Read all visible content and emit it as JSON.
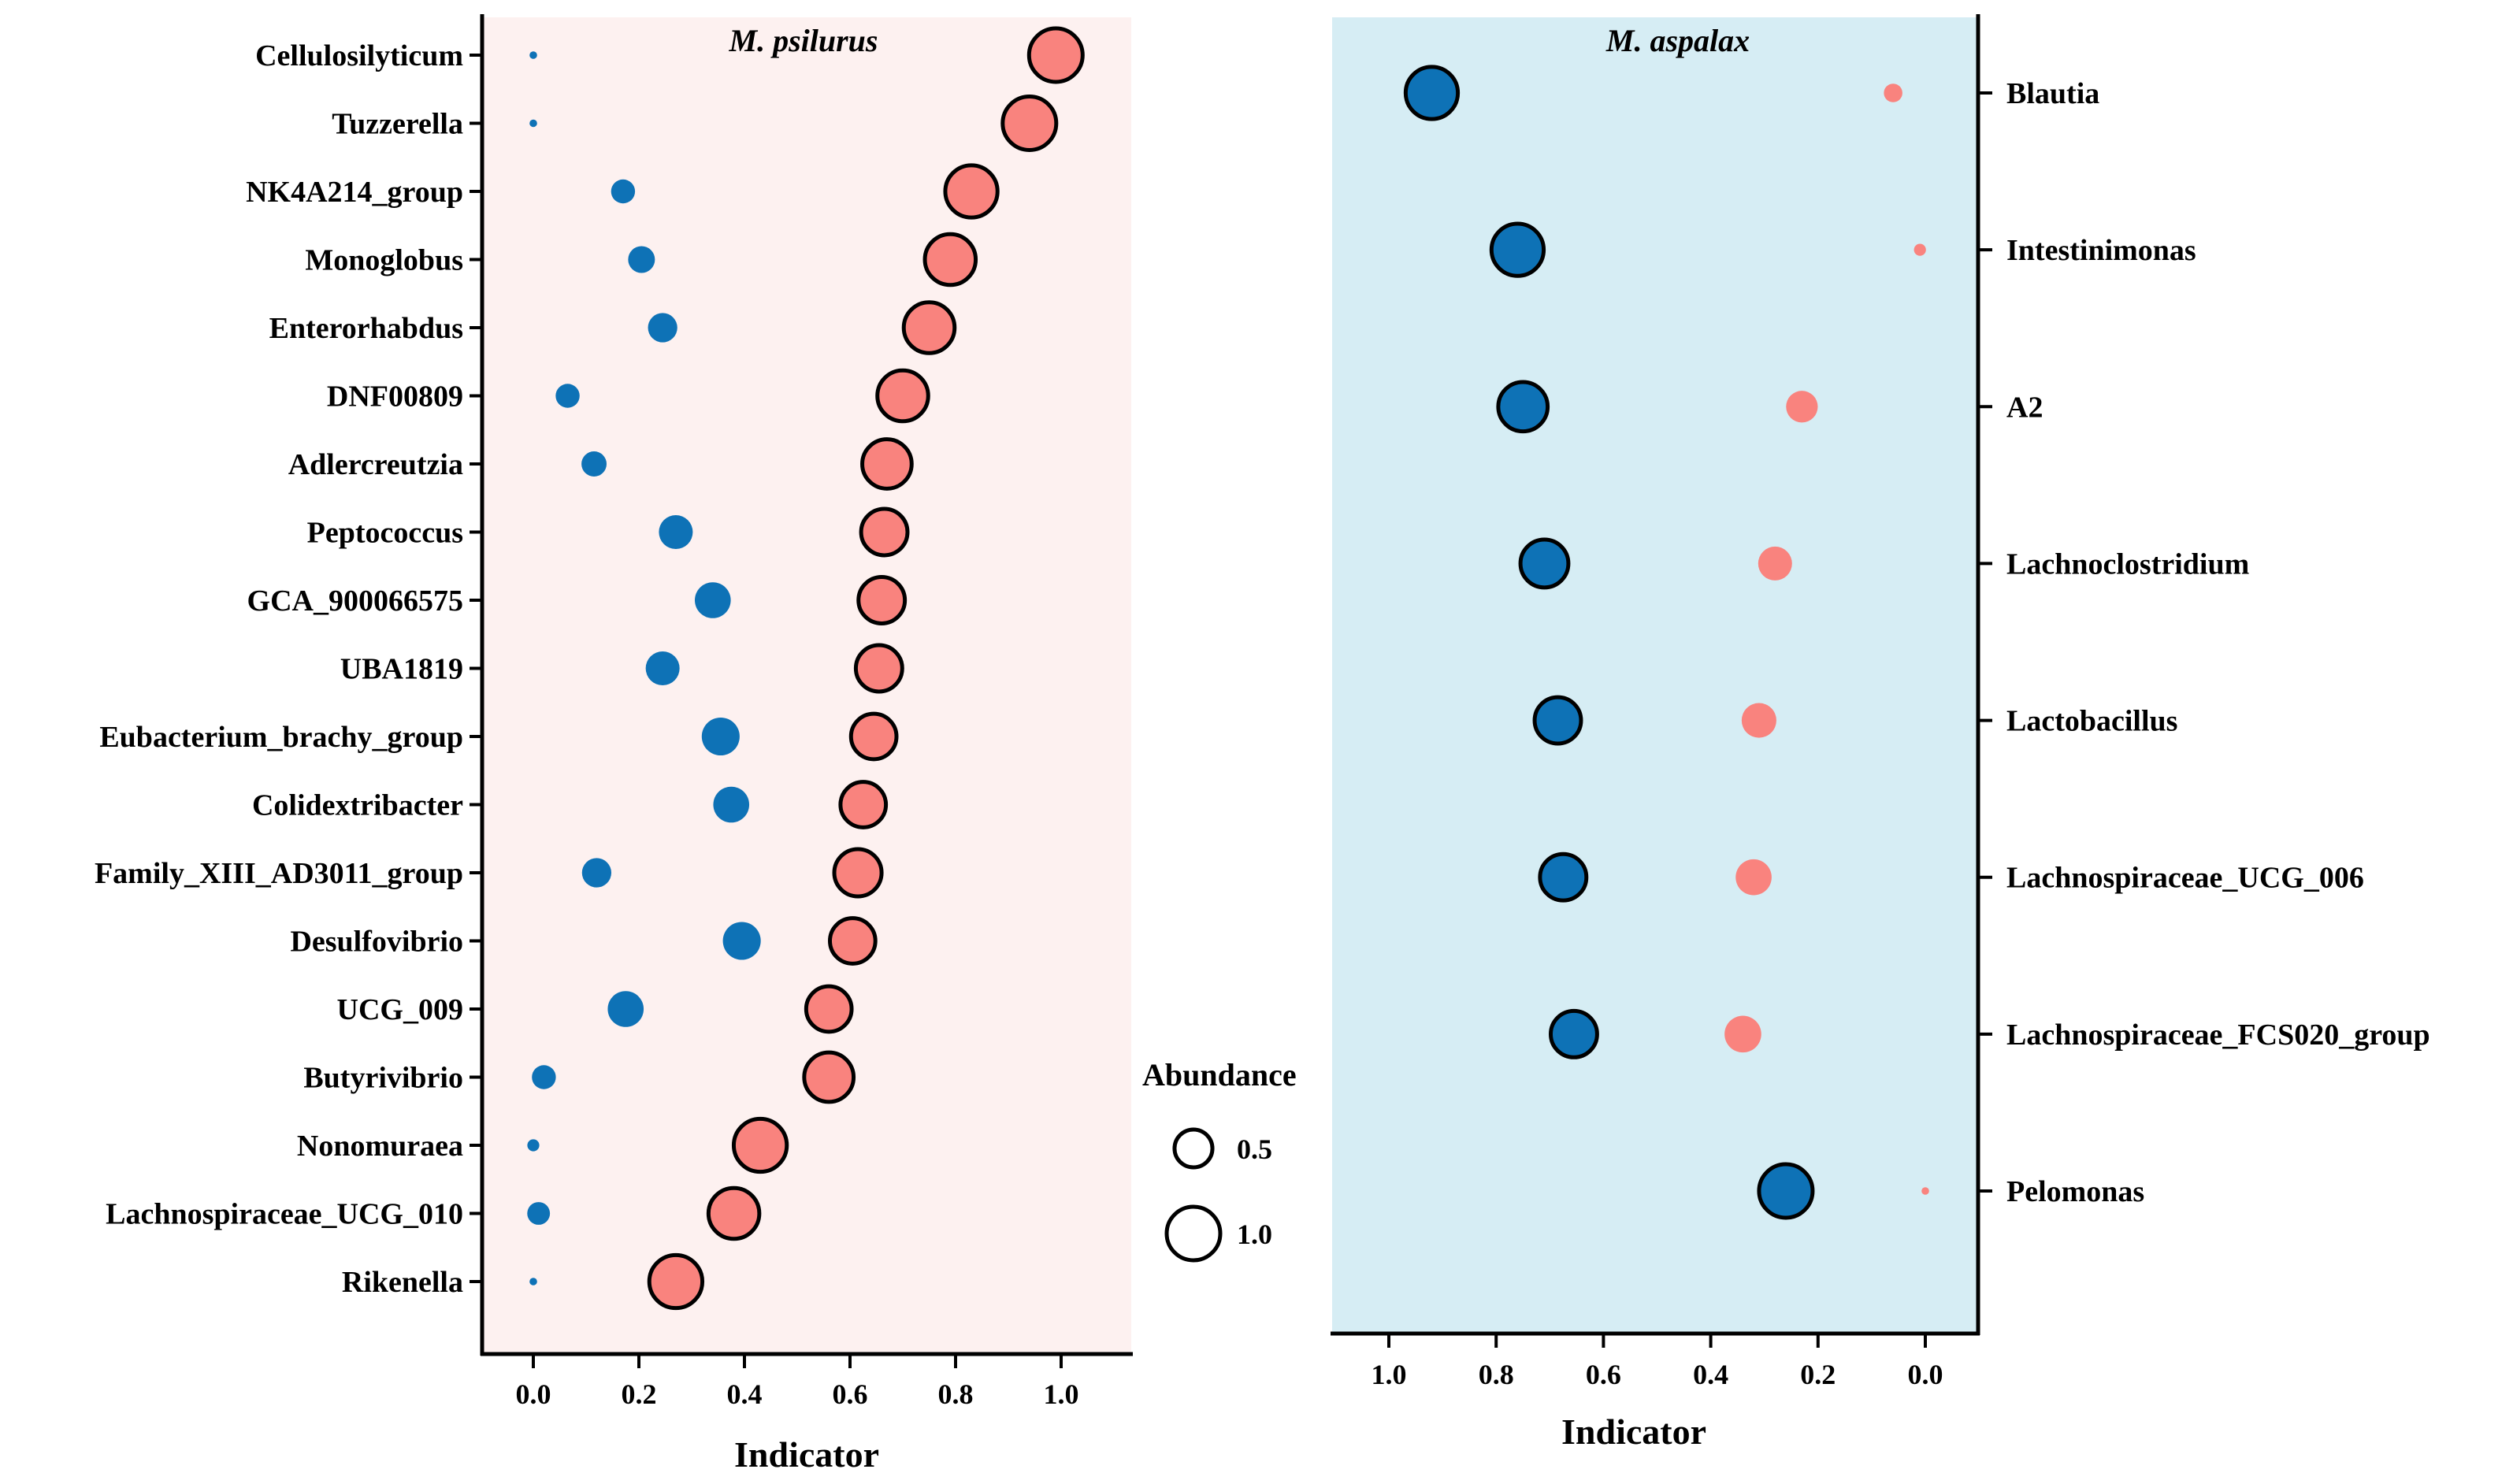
{
  "chart_data": [
    {
      "type": "scatter",
      "title": "M. psilurus",
      "xlabel": "Indicator",
      "xlim": [
        -0.1,
        1.1
      ],
      "xticks": [
        "0.0",
        "0.2",
        "0.4",
        "0.6",
        "0.8",
        "1.0"
      ],
      "background": "#fdf1f0",
      "categories": [
        "Cellulosilyticum",
        "Tuzzerella",
        "NK4A214_group",
        "Monoglobus",
        "Enterorhabdus",
        "DNF00809",
        "Adlercreutzia",
        "Peptococcus",
        "GCA_900066575",
        "UBA1819",
        "Eubacterium_brachy_group",
        "Colidextribacter",
        "Family_XIII_AD3011_group",
        "Desulfovibrio",
        "UCG_009",
        "Butyrivibrio",
        "Nonomuraea",
        "Lachnospiraceae_UCG_010",
        "Rikenella"
      ],
      "series": [
        {
          "name": "M. psilurus",
          "color": "#f9837e",
          "outlined": true,
          "indicator": [
            0.99,
            0.94,
            0.83,
            0.79,
            0.75,
            0.7,
            0.67,
            0.665,
            0.66,
            0.655,
            0.645,
            0.625,
            0.615,
            0.605,
            0.56,
            0.56,
            0.43,
            0.38,
            0.27
          ],
          "abundance": [
            1.0,
            1.0,
            0.95,
            0.9,
            0.9,
            0.9,
            0.85,
            0.75,
            0.75,
            0.75,
            0.72,
            0.72,
            0.78,
            0.72,
            0.72,
            0.85,
            0.98,
            0.9,
            0.98
          ]
        },
        {
          "name": "M. aspalax",
          "color": "#0e72b6",
          "outlined": false,
          "indicator": [
            0.0,
            0.0,
            0.17,
            0.205,
            0.245,
            0.065,
            0.115,
            0.27,
            0.34,
            0.245,
            0.355,
            0.375,
            0.12,
            0.395,
            0.175,
            0.02,
            0.0,
            0.01,
            0.0
          ],
          "abundance": [
            0.02,
            0.02,
            0.2,
            0.25,
            0.3,
            0.2,
            0.22,
            0.4,
            0.45,
            0.4,
            0.5,
            0.45,
            0.3,
            0.5,
            0.45,
            0.2,
            0.05,
            0.18,
            0.02
          ]
        }
      ]
    },
    {
      "type": "scatter",
      "title": "M. aspalax",
      "xlabel": "Indicator",
      "xlim": [
        1.1,
        -0.1
      ],
      "xticks": [
        "1.0",
        "0.8",
        "0.6",
        "0.4",
        "0.2",
        "0.0"
      ],
      "background": "#d6edf4",
      "label_side": "right",
      "categories": [
        "Blautia",
        "Intestinimonas",
        "A2",
        "Lachnoclostridium",
        "Lactobacillus",
        "Lachnospiraceae_UCG_006",
        "Lachnospiraceae_FCS020_group",
        "Pelomonas"
      ],
      "series": [
        {
          "name": "M. aspalax",
          "color": "#0e72b6",
          "outlined": true,
          "indicator": [
            0.92,
            0.76,
            0.75,
            0.71,
            0.685,
            0.675,
            0.655,
            0.26
          ],
          "abundance": [
            0.95,
            0.95,
            0.85,
            0.8,
            0.75,
            0.75,
            0.75,
            1.0
          ]
        },
        {
          "name": "M. psilurus",
          "color": "#f9837e",
          "outlined": false,
          "indicator": [
            0.06,
            0.01,
            0.23,
            0.28,
            0.31,
            0.32,
            0.34,
            0.0
          ],
          "abundance": [
            0.12,
            0.05,
            0.35,
            0.4,
            0.42,
            0.45,
            0.47,
            0.02
          ]
        }
      ]
    }
  ],
  "legend": {
    "title": "Abundance",
    "items": [
      {
        "label": "0.5",
        "value": 0.5
      },
      {
        "label": "1.0",
        "value": 1.0
      }
    ]
  }
}
